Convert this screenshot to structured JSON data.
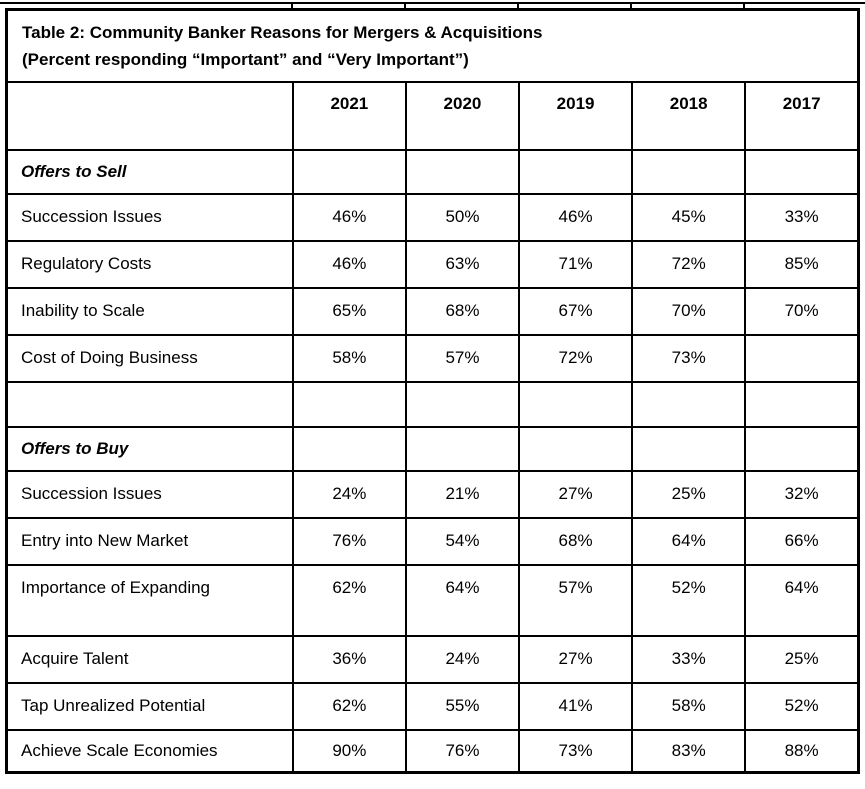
{
  "table": {
    "title_line1": "Table 2: Community Banker Reasons for Mergers & Acquisitions",
    "title_line2": "(Percent responding “Important” and “Very Important”)",
    "columns": [
      "2021",
      "2020",
      "2019",
      "2018",
      "2017"
    ],
    "sections": [
      {
        "header": "Offers to Sell",
        "rows": [
          {
            "label": "Succession Issues",
            "values": [
              "46%",
              "50%",
              "46%",
              "45%",
              "33%"
            ]
          },
          {
            "label": "Regulatory Costs",
            "values": [
              "46%",
              "63%",
              "71%",
              "72%",
              "85%"
            ]
          },
          {
            "label": "Inability to Scale",
            "values": [
              "65%",
              "68%",
              "67%",
              "70%",
              "70%"
            ]
          },
          {
            "label": "Cost of Doing Business",
            "values": [
              "58%",
              "57%",
              "72%",
              "73%",
              ""
            ]
          }
        ]
      },
      {
        "header": "Offers to Buy",
        "rows": [
          {
            "label": "Succession Issues",
            "values": [
              "24%",
              "21%",
              "27%",
              "25%",
              "32%"
            ]
          },
          {
            "label": "Entry into New Market",
            "values": [
              "76%",
              "54%",
              "68%",
              "64%",
              "66%"
            ]
          },
          {
            "label": "Importance of Expanding",
            "values": [
              "62%",
              "64%",
              "57%",
              "52%",
              "64%"
            ]
          },
          {
            "label": "Acquire Talent",
            "values": [
              "36%",
              "24%",
              "27%",
              "33%",
              "25%"
            ]
          },
          {
            "label": "Tap Unrealized Potential",
            "values": [
              "62%",
              "55%",
              "41%",
              "58%",
              "52%"
            ]
          },
          {
            "label": "Achieve Scale Economies",
            "values": [
              "90%",
              "76%",
              "73%",
              "83%",
              "88%"
            ]
          }
        ]
      }
    ]
  },
  "colors": {
    "border": "#000000",
    "text": "#000000",
    "background": "#ffffff"
  },
  "chart_data": {
    "type": "table",
    "title": "Table 2: Community Banker Reasons for Mergers & Acquisitions",
    "subtitle": "(Percent responding “Important” and “Very Important”)",
    "unit": "percent",
    "columns": [
      "2021",
      "2020",
      "2019",
      "2018",
      "2017"
    ],
    "sections": [
      {
        "name": "Offers to Sell",
        "rows": [
          {
            "label": "Succession Issues",
            "values": [
              46,
              50,
              46,
              45,
              33
            ]
          },
          {
            "label": "Regulatory Costs",
            "values": [
              46,
              63,
              71,
              72,
              85
            ]
          },
          {
            "label": "Inability to Scale",
            "values": [
              65,
              68,
              67,
              70,
              70
            ]
          },
          {
            "label": "Cost of Doing Business",
            "values": [
              58,
              57,
              72,
              73,
              null
            ]
          }
        ]
      },
      {
        "name": "Offers to Buy",
        "rows": [
          {
            "label": "Succession Issues",
            "values": [
              24,
              21,
              27,
              25,
              32
            ]
          },
          {
            "label": "Entry into New Market",
            "values": [
              76,
              54,
              68,
              64,
              66
            ]
          },
          {
            "label": "Importance of Expanding",
            "values": [
              62,
              64,
              57,
              52,
              64
            ]
          },
          {
            "label": "Acquire Talent",
            "values": [
              36,
              24,
              27,
              33,
              25
            ]
          },
          {
            "label": "Tap Unrealized Potential",
            "values": [
              62,
              55,
              41,
              58,
              52
            ]
          },
          {
            "label": "Achieve Scale Economies",
            "values": [
              90,
              76,
              73,
              83,
              88
            ]
          }
        ]
      }
    ]
  }
}
